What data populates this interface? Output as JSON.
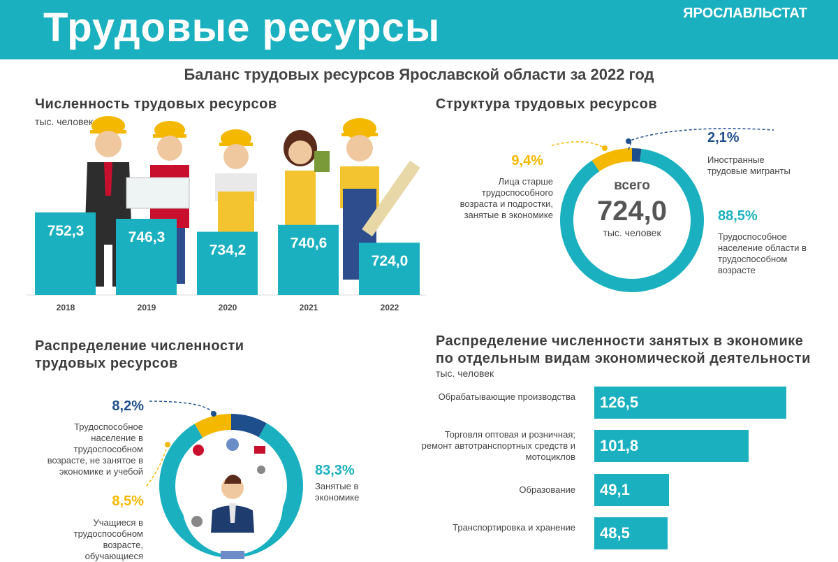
{
  "header": {
    "title": "Трудовые ресурсы",
    "org": "ЯРОСЛАВЛЬСТАТ"
  },
  "subtitle": "Баланс трудовых ресурсов Ярославской области за 2022 год",
  "colors": {
    "accent": "#1ab0c0",
    "yellow": "#f4b800",
    "navy": "#1f4e8c"
  },
  "numbers": {
    "title": "Численность трудовых ресурсов",
    "unit": "тыс. человек",
    "chart_data": {
      "type": "bar",
      "categories": [
        "2018",
        "2019",
        "2020",
        "2021",
        "2022"
      ],
      "values": [
        752.3,
        746.3,
        734.2,
        740.6,
        724.0
      ],
      "labels": [
        "752,3",
        "746,3",
        "734,2",
        "740,6",
        "724,0"
      ]
    }
  },
  "structure": {
    "title": "Структура трудовых ресурсов",
    "center_top": "всего",
    "center_value": "724,0",
    "center_unit": "тыс. человек",
    "items": [
      {
        "pct": "2,1%",
        "text": "Иностранные трудовые мигранты",
        "value": 2.1,
        "color": "#1f4e8c"
      },
      {
        "pct": "9,4%",
        "text": "Лица старше трудоспособного возраста и подростки, занятые в экономике",
        "value": 9.4,
        "color": "#f4b800"
      },
      {
        "pct": "88,5%",
        "text": "Трудоспособное население области в трудоспособном возрасте",
        "value": 88.5,
        "color": "#1ab0c0"
      }
    ]
  },
  "distribution": {
    "title_line1": "Распределение численности",
    "title_line2": "трудовых ресурсов",
    "items": [
      {
        "pct": "8,2%",
        "text": "Трудоспособное население в трудоспособном возрасте, не занятое в экономике и учебой",
        "value": 8.2,
        "color": "#1f4e8c"
      },
      {
        "pct": "8,5%",
        "text": "Учащиеся в трудоспособном возрасте, обучающиеся",
        "value": 8.5,
        "color": "#f4b800"
      },
      {
        "pct": "83,3%",
        "text": "Занятые в экономике",
        "value": 83.3,
        "color": "#1ab0c0"
      }
    ]
  },
  "employment": {
    "title_line1": "Распределение численности занятых в экономике",
    "title_line2": "по отдельным видам экономической деятельности",
    "unit": "тыс. человек",
    "chart_data": {
      "type": "bar",
      "orientation": "horizontal",
      "categories": [
        "Обрабатывающие производства",
        "Торговля оптовая и розничная; ремонт автотранспортных средств и мотоциклов",
        "Образование",
        "Транспортировка и хранение"
      ],
      "values": [
        126.5,
        101.8,
        49.1,
        48.5
      ],
      "labels": [
        "126,5",
        "101,8",
        "49,1",
        "48,5"
      ]
    }
  }
}
